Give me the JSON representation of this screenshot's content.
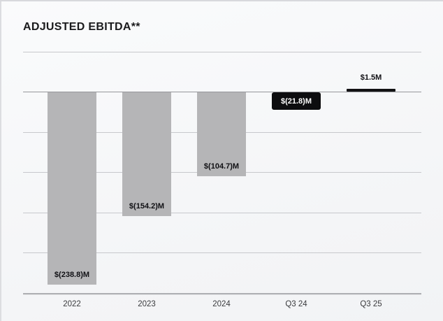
{
  "header": {
    "title": "ADJUSTED EBITDA**"
  },
  "chart_data": {
    "type": "bar",
    "title": "ADJUSTED EBITDA**",
    "categories": [
      "2022",
      "2023",
      "2024",
      "Q3 24",
      "Q3 25"
    ],
    "values": [
      -238.8,
      -154.2,
      -104.7,
      -21.8,
      1.5
    ],
    "value_labels": [
      "$(238.8)M",
      "$(154.2)M",
      "$(104.7)M",
      "$(21.8)M",
      "$1.5M"
    ],
    "bar_colors": [
      "#b5b5b7",
      "#b5b5b7",
      "#b5b5b7",
      "#0d0d0f",
      "#121214"
    ],
    "label_styles": [
      "inside-bottom",
      "inside-bottom",
      "inside-bottom",
      "badge",
      "above"
    ],
    "label_text_colors": [
      "#101014",
      "#101014",
      "#101014",
      "#ffffff",
      "#101014"
    ],
    "xlabel": "",
    "ylabel": "",
    "ylim": [
      -250,
      50
    ],
    "gridline_step": 50,
    "grid": "horizontal-only",
    "legend": "none"
  },
  "colors": {
    "background": "#f5f6f8",
    "bar_gray": "#b5b5b7",
    "bar_black": "#0d0d0f",
    "gridline": "#c7c8cc",
    "zero_line": "#96979b",
    "axis_line": "#aeafb3",
    "tick_label": "#3a3b3e",
    "title": "#1a1a1c"
  }
}
